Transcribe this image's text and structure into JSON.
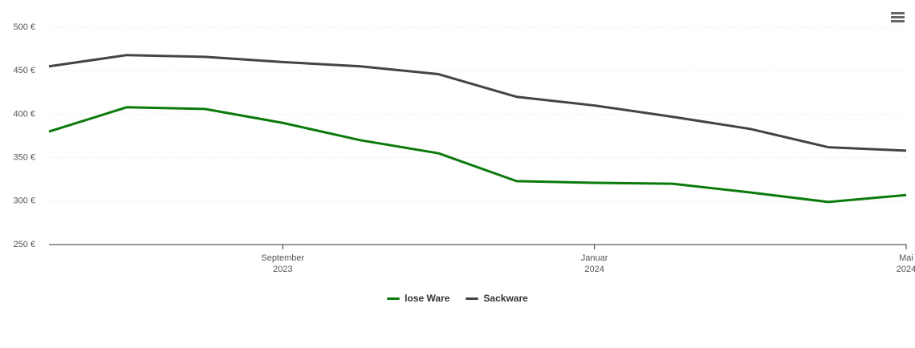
{
  "chart_data": {
    "type": "line",
    "x": [
      "2023-06",
      "2023-07",
      "2023-08",
      "2023-09",
      "2023-10",
      "2023-11",
      "2023-12",
      "2024-01",
      "2024-02",
      "2024-03",
      "2024-04",
      "2024-05"
    ],
    "series": [
      {
        "name": "lose Ware",
        "color": "#0a7a0a",
        "values": [
          380,
          408,
          406,
          390,
          370,
          355,
          323,
          321,
          320,
          310,
          299,
          307
        ]
      },
      {
        "name": "Sackware",
        "color": "#434348",
        "values": [
          455,
          468,
          466,
          460,
          455,
          446,
          420,
          410,
          397,
          383,
          362,
          358
        ]
      }
    ],
    "xlim": [
      "2023-06",
      "2024-05"
    ],
    "xticks": [
      {
        "value": "2023-09",
        "label": "September 2023"
      },
      {
        "value": "2024-01",
        "label": "Januar 2024"
      },
      {
        "value": "2024-05",
        "label": "Mai 2024"
      }
    ],
    "ylim": [
      250,
      500
    ],
    "yticks": [
      {
        "value": 250,
        "label": "250 €"
      },
      {
        "value": 300,
        "label": "300 €"
      },
      {
        "value": 350,
        "label": "350 €"
      },
      {
        "value": 400,
        "label": "400 €"
      },
      {
        "value": 450,
        "label": "450 €"
      },
      {
        "value": 500,
        "label": "500 €"
      }
    ],
    "grid": true,
    "legend": "bottom"
  }
}
